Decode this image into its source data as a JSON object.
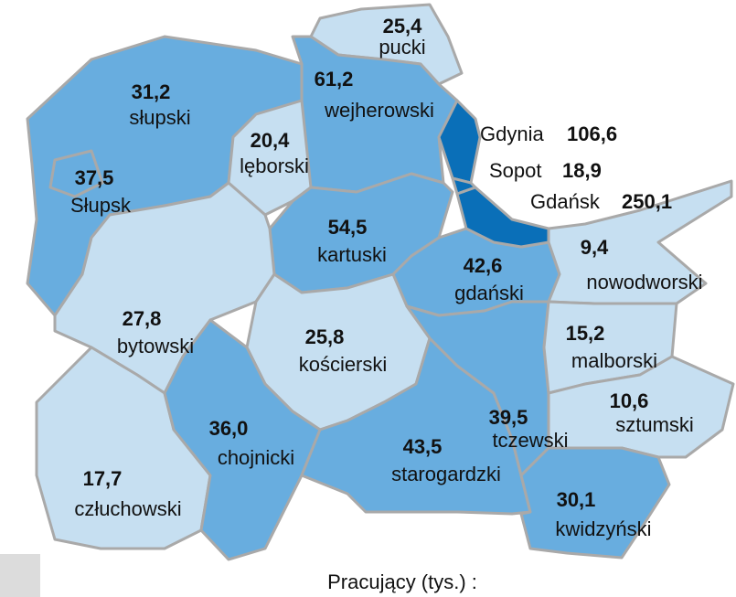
{
  "regions": [
    {
      "name": "pucki",
      "value": "25,4",
      "color": "#c6dff1"
    },
    {
      "name": "wejherowski",
      "value": "61,2",
      "color": "#68addf"
    },
    {
      "name": "słupski",
      "value": "31,2",
      "color": "#68addf"
    },
    {
      "name": "Słupsk",
      "value": "37,5",
      "color": "#68addf"
    },
    {
      "name": "lęborski",
      "value": "20,4",
      "color": "#c6dff1"
    },
    {
      "name": "kartuski",
      "value": "54,5",
      "color": "#68addf"
    },
    {
      "name": "gdański",
      "value": "42,6",
      "color": "#68addf"
    },
    {
      "name": "nowodworski",
      "value": "9,4",
      "color": "#c6dff1"
    },
    {
      "name": "bytowski",
      "value": "27,8",
      "color": "#c6dff1"
    },
    {
      "name": "kościerski",
      "value": "25,8",
      "color": "#c6dff1"
    },
    {
      "name": "człuchowski",
      "value": "17,7",
      "color": "#c6dff1"
    },
    {
      "name": "chojnicki",
      "value": "36,0",
      "color": "#68addf"
    },
    {
      "name": "starogardzki",
      "value": "43,5",
      "color": "#68addf"
    },
    {
      "name": "tczewski",
      "value": "39,5",
      "color": "#68addf"
    },
    {
      "name": "malborski",
      "value": "15,2",
      "color": "#c6dff1"
    },
    {
      "name": "sztumski",
      "value": "10,6",
      "color": "#c6dff1"
    },
    {
      "name": "kwidzyński",
      "value": "30,1",
      "color": "#68addf"
    },
    {
      "name": "Gdynia",
      "value": "106,6",
      "color": "#0a6fb8"
    },
    {
      "name": "Sopot",
      "value": "18,9",
      "color": "#0a6fb8"
    },
    {
      "name": "Gdańsk",
      "value": "250,1",
      "color": "#0a6fb8"
    }
  ],
  "legend_title": "Pracujący (tys.) :"
}
